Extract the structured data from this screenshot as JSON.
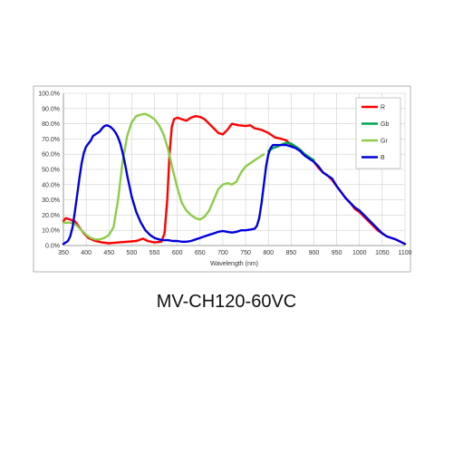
{
  "chart_data": {
    "type": "line",
    "title": "",
    "xlabel": "Wavelength (nm)",
    "ylabel": "",
    "xlim": [
      350,
      1100
    ],
    "ylim": [
      0,
      100
    ],
    "grid": true,
    "legend_position": "top-right",
    "x_ticks": [
      "350",
      "400",
      "450",
      "500",
      "550",
      "600",
      "650",
      "700",
      "750",
      "800",
      "850",
      "900",
      "950",
      "1000",
      "1050",
      "1100"
    ],
    "y_ticks": [
      "0.0%",
      "10.0%",
      "20.0%",
      "30.0%",
      "40.0%",
      "50.0%",
      "60.0%",
      "70.0%",
      "80.0%",
      "90.0%",
      "100.0%"
    ],
    "series": [
      {
        "name": "R",
        "color": "#ff0000",
        "points": [
          [
            350,
            16
          ],
          [
            355,
            18
          ],
          [
            365,
            17
          ],
          [
            375,
            16
          ],
          [
            385,
            12
          ],
          [
            395,
            8
          ],
          [
            405,
            5
          ],
          [
            420,
            3
          ],
          [
            435,
            2
          ],
          [
            450,
            1.5
          ],
          [
            470,
            2
          ],
          [
            490,
            2.5
          ],
          [
            510,
            3
          ],
          [
            525,
            4.5
          ],
          [
            535,
            3
          ],
          [
            550,
            2
          ],
          [
            565,
            2.5
          ],
          [
            572,
            8
          ],
          [
            578,
            30
          ],
          [
            583,
            60
          ],
          [
            588,
            78
          ],
          [
            593,
            83
          ],
          [
            600,
            84
          ],
          [
            610,
            83
          ],
          [
            620,
            82
          ],
          [
            630,
            84
          ],
          [
            640,
            85
          ],
          [
            650,
            84.5
          ],
          [
            660,
            83
          ],
          [
            670,
            80
          ],
          [
            680,
            77
          ],
          [
            690,
            74
          ],
          [
            700,
            73
          ],
          [
            710,
            76
          ],
          [
            720,
            80
          ],
          [
            735,
            79
          ],
          [
            750,
            78.5
          ],
          [
            760,
            79
          ],
          [
            770,
            77
          ],
          [
            785,
            76
          ],
          [
            800,
            74
          ],
          [
            815,
            71
          ],
          [
            830,
            70
          ],
          [
            840,
            69
          ],
          [
            850,
            66
          ],
          [
            860,
            64
          ],
          [
            870,
            62
          ],
          [
            880,
            60
          ],
          [
            890,
            58
          ],
          [
            900,
            55
          ],
          [
            910,
            51
          ],
          [
            920,
            48
          ],
          [
            930,
            46
          ],
          [
            940,
            43
          ],
          [
            950,
            39
          ],
          [
            960,
            35
          ],
          [
            970,
            31
          ],
          [
            980,
            28
          ],
          [
            990,
            24
          ],
          [
            1000,
            22
          ],
          [
            1010,
            19
          ],
          [
            1020,
            16
          ],
          [
            1030,
            13
          ],
          [
            1040,
            10
          ],
          [
            1050,
            8
          ],
          [
            1060,
            6
          ],
          [
            1070,
            5
          ],
          [
            1080,
            4
          ],
          [
            1090,
            2.5
          ],
          [
            1100,
            1
          ]
        ]
      },
      {
        "name": "Gb",
        "color": "#00a651",
        "points": [
          [
            800,
            62
          ],
          [
            810,
            64
          ],
          [
            820,
            65
          ],
          [
            830,
            66.5
          ],
          [
            840,
            67.5
          ],
          [
            850,
            67
          ],
          [
            860,
            65
          ],
          [
            870,
            63
          ],
          [
            880,
            60
          ],
          [
            890,
            58
          ],
          [
            900,
            56
          ]
        ]
      },
      {
        "name": "Gr",
        "color": "#8ccc4a",
        "points": [
          [
            350,
            15
          ],
          [
            360,
            15
          ],
          [
            370,
            15
          ],
          [
            380,
            13
          ],
          [
            390,
            10
          ],
          [
            400,
            7
          ],
          [
            410,
            5
          ],
          [
            420,
            4
          ],
          [
            430,
            4
          ],
          [
            440,
            5
          ],
          [
            450,
            7
          ],
          [
            460,
            12
          ],
          [
            470,
            30
          ],
          [
            480,
            55
          ],
          [
            490,
            72
          ],
          [
            500,
            81
          ],
          [
            510,
            85
          ],
          [
            520,
            86
          ],
          [
            530,
            86.5
          ],
          [
            540,
            85
          ],
          [
            550,
            83
          ],
          [
            560,
            79
          ],
          [
            570,
            73
          ],
          [
            580,
            63
          ],
          [
            590,
            50
          ],
          [
            600,
            38
          ],
          [
            610,
            28
          ],
          [
            620,
            23
          ],
          [
            630,
            20
          ],
          [
            640,
            18
          ],
          [
            650,
            17
          ],
          [
            660,
            19
          ],
          [
            670,
            23
          ],
          [
            680,
            30
          ],
          [
            690,
            37
          ],
          [
            700,
            40
          ],
          [
            710,
            41
          ],
          [
            720,
            40
          ],
          [
            730,
            42
          ],
          [
            740,
            48
          ],
          [
            750,
            52
          ],
          [
            760,
            54
          ],
          [
            770,
            56
          ],
          [
            780,
            58
          ],
          [
            790,
            60
          ]
        ]
      },
      {
        "name": "B",
        "color": "#0000dd",
        "points": [
          [
            350,
            1
          ],
          [
            355,
            2
          ],
          [
            360,
            3
          ],
          [
            365,
            6
          ],
          [
            370,
            12
          ],
          [
            375,
            22
          ],
          [
            380,
            33
          ],
          [
            385,
            44
          ],
          [
            390,
            54
          ],
          [
            395,
            61
          ],
          [
            400,
            65
          ],
          [
            405,
            67
          ],
          [
            410,
            69
          ],
          [
            415,
            72
          ],
          [
            420,
            73
          ],
          [
            425,
            74
          ],
          [
            430,
            75
          ],
          [
            435,
            77
          ],
          [
            440,
            78.5
          ],
          [
            445,
            79
          ],
          [
            450,
            78.5
          ],
          [
            455,
            77.5
          ],
          [
            460,
            76
          ],
          [
            465,
            74
          ],
          [
            470,
            71
          ],
          [
            475,
            67
          ],
          [
            480,
            61
          ],
          [
            485,
            54
          ],
          [
            490,
            46
          ],
          [
            495,
            39
          ],
          [
            500,
            32
          ],
          [
            510,
            22
          ],
          [
            520,
            15
          ],
          [
            530,
            10
          ],
          [
            540,
            7
          ],
          [
            550,
            5
          ],
          [
            560,
            4
          ],
          [
            570,
            3.5
          ],
          [
            580,
            3.5
          ],
          [
            590,
            3
          ],
          [
            600,
            3
          ],
          [
            610,
            2.5
          ],
          [
            620,
            2.5
          ],
          [
            630,
            3
          ],
          [
            640,
            4
          ],
          [
            650,
            5
          ],
          [
            660,
            6
          ],
          [
            670,
            7
          ],
          [
            680,
            8
          ],
          [
            690,
            9
          ],
          [
            700,
            9.5
          ],
          [
            710,
            9
          ],
          [
            720,
            8.5
          ],
          [
            730,
            9
          ],
          [
            740,
            10
          ],
          [
            750,
            10
          ],
          [
            760,
            10.5
          ],
          [
            770,
            11
          ],
          [
            775,
            13
          ],
          [
            780,
            18
          ],
          [
            785,
            28
          ],
          [
            790,
            40
          ],
          [
            795,
            52
          ],
          [
            800,
            60
          ],
          [
            805,
            64
          ],
          [
            810,
            66
          ],
          [
            820,
            66
          ],
          [
            830,
            66
          ],
          [
            840,
            66
          ],
          [
            850,
            65
          ],
          [
            860,
            64
          ],
          [
            870,
            62
          ],
          [
            880,
            59
          ],
          [
            890,
            57
          ],
          [
            900,
            55
          ],
          [
            910,
            52
          ],
          [
            920,
            48
          ],
          [
            930,
            46
          ],
          [
            940,
            44
          ],
          [
            950,
            39
          ],
          [
            960,
            35
          ],
          [
            970,
            31
          ],
          [
            980,
            28
          ],
          [
            990,
            25
          ],
          [
            1000,
            23
          ],
          [
            1010,
            20
          ],
          [
            1020,
            17
          ],
          [
            1030,
            14
          ],
          [
            1040,
            11
          ],
          [
            1050,
            8
          ],
          [
            1060,
            6
          ],
          [
            1070,
            5
          ],
          [
            1080,
            4
          ],
          [
            1090,
            2.5
          ],
          [
            1100,
            1
          ]
        ]
      }
    ]
  },
  "caption": "MV-CH120-60VC"
}
